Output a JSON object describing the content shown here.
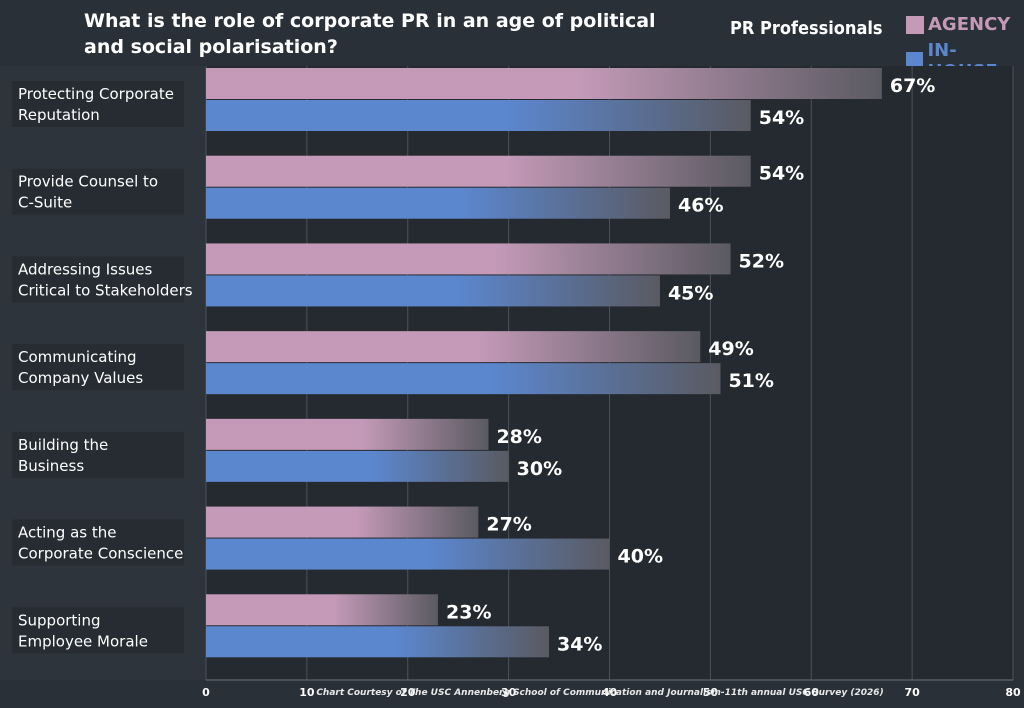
{
  "title": "What is the role of corporate PR in an age of political and social polarisation?",
  "legend": {
    "heading": "PR Professionals",
    "items": [
      {
        "name": "AGENCY",
        "color": "#c49ab8"
      },
      {
        "name": "IN-HOUSE",
        "color": "#5b87cf"
      }
    ]
  },
  "footer": "Chart Courtesy of The USC Annenberg School of Communication and Journalism-11th annual USC Survey (2026)",
  "chart_data": {
    "type": "bar",
    "orientation": "horizontal",
    "categories": [
      "Protecting Corporate Reputation",
      "Provide Counsel to C-Suite",
      "Addressing Issues Critical to Stakeholders",
      "Communicating Company Values",
      "Building the Business",
      "Acting as the Corporate Conscience",
      "Supporting Employee Morale"
    ],
    "category_lines": [
      [
        "Protecting Corporate",
        "Reputation"
      ],
      [
        "Provide Counsel to",
        "C-Suite"
      ],
      [
        "Addressing Issues",
        "Critical to Stakeholders"
      ],
      [
        "Communicating",
        "Company Values"
      ],
      [
        "Building the",
        "Business"
      ],
      [
        "Acting as the",
        "Corporate Conscience"
      ],
      [
        "Supporting",
        "Employee Morale"
      ]
    ],
    "series": [
      {
        "name": "AGENCY",
        "values": [
          67,
          54,
          52,
          49,
          28,
          27,
          23
        ],
        "labels": [
          "67%",
          "54%",
          "52%",
          "49%",
          "28%",
          "27%",
          "23%"
        ],
        "color": "#c49ab8"
      },
      {
        "name": "IN-HOUSE",
        "values": [
          54,
          46,
          45,
          51,
          30,
          40,
          34
        ],
        "labels": [
          "54%",
          "46%",
          "45%",
          "51%",
          "30%",
          "40%",
          "34%"
        ],
        "color": "#5b87cf"
      }
    ],
    "xlim": [
      0,
      80
    ],
    "xticks": [
      0,
      10,
      20,
      30,
      40,
      50,
      60,
      70,
      80
    ],
    "grid": true
  }
}
